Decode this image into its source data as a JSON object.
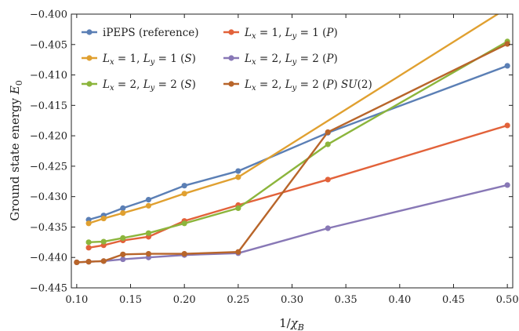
{
  "chart_data": {
    "type": "line",
    "xlabel": "1/χ_B",
    "ylabel": "Ground state energy E_0",
    "xlim": [
      0.095,
      0.505
    ],
    "ylim": [
      -0.445,
      -0.4
    ],
    "xticks": [
      0.1,
      0.15,
      0.2,
      0.25,
      0.3,
      0.35,
      0.4,
      0.45,
      0.5
    ],
    "xtick_labels": [
      "0.10",
      "0.15",
      "0.20",
      "0.25",
      "0.30",
      "0.35",
      "0.40",
      "0.45",
      "0.50"
    ],
    "yticks": [
      -0.445,
      -0.44,
      -0.435,
      -0.43,
      -0.425,
      -0.42,
      -0.415,
      -0.41,
      -0.405,
      -0.4
    ],
    "ytick_labels": [
      "−0.445",
      "−0.440",
      "−0.435",
      "−0.430",
      "−0.425",
      "−0.420",
      "−0.415",
      "−0.410",
      "−0.405",
      "−0.400"
    ],
    "grid": false,
    "legend_position": "top-left",
    "series": [
      {
        "name": "iPEPS (reference)",
        "color": "#5b7fb5",
        "x": [
          0.1111,
          0.125,
          0.1429,
          0.1667,
          0.2,
          0.25,
          0.3333,
          0.5
        ],
        "y": [
          -0.4338,
          -0.4331,
          -0.4319,
          -0.4305,
          -0.4282,
          -0.4258,
          -0.4195,
          -0.4085
        ]
      },
      {
        "name": "L_x = 1, L_y = 1 (P)",
        "color": "#e2623a",
        "x": [
          0.1111,
          0.125,
          0.1429,
          0.1667,
          0.2,
          0.25,
          0.3333,
          0.5
        ],
        "y": [
          -0.4384,
          -0.438,
          -0.4372,
          -0.4366,
          -0.434,
          -0.4314,
          -0.4272,
          -0.4183
        ]
      },
      {
        "name": "L_x = 1, L_y = 1 (S)",
        "color": "#e0a030",
        "x": [
          0.1111,
          0.125,
          0.1429,
          0.1667,
          0.2,
          0.25,
          0.5
        ],
        "y": [
          -0.4344,
          -0.4336,
          -0.4327,
          -0.4315,
          -0.4295,
          -0.4268,
          -0.399
        ]
      },
      {
        "name": "L_x = 2, L_y = 2 (P)",
        "color": "#8878b6",
        "x": [
          0.1,
          0.1111,
          0.125,
          0.1429,
          0.1667,
          0.2,
          0.25,
          0.3333,
          0.5
        ],
        "y": [
          -0.4408,
          -0.4407,
          -0.4406,
          -0.4403,
          -0.44,
          -0.4396,
          -0.4393,
          -0.4352,
          -0.4281
        ]
      },
      {
        "name": "L_x = 2, L_y = 2 (S)",
        "color": "#8cb53c",
        "x": [
          0.1111,
          0.125,
          0.1429,
          0.1667,
          0.2,
          0.25,
          0.3333,
          0.5
        ],
        "y": [
          -0.4375,
          -0.4374,
          -0.4368,
          -0.436,
          -0.4344,
          -0.4319,
          -0.4214,
          -0.4045
        ]
      },
      {
        "name": "L_x = 2, L_y = 2 (P) SU(2)",
        "color": "#b8652a",
        "x": [
          0.1,
          0.1111,
          0.125,
          0.1429,
          0.1667,
          0.2,
          0.25,
          0.3333,
          0.5
        ],
        "y": [
          -0.4408,
          -0.4407,
          -0.4406,
          -0.4395,
          -0.4394,
          -0.4394,
          -0.4391,
          -0.4194,
          -0.4049
        ]
      }
    ],
    "legend_labels": [
      [
        "iPEPS (reference)"
      ],
      [
        "",
        "L",
        "x",
        " = 1, ",
        "L",
        "y",
        " = 1 (",
        "P",
        ")"
      ],
      [
        "",
        "L",
        "x",
        " = 1, ",
        "L",
        "y",
        " = 1 (",
        "S",
        ")"
      ],
      [
        "",
        "L",
        "x",
        " = 2, ",
        "L",
        "y",
        " = 2 (",
        "P",
        ")"
      ],
      [
        "",
        "L",
        "x",
        " = 2, ",
        "L",
        "y",
        " = 2 (",
        "S",
        ")"
      ],
      [
        "",
        "L",
        "x",
        " = 2, ",
        "L",
        "y",
        " = 2 (",
        "P",
        ") ",
        "SU",
        "(2)"
      ]
    ]
  }
}
